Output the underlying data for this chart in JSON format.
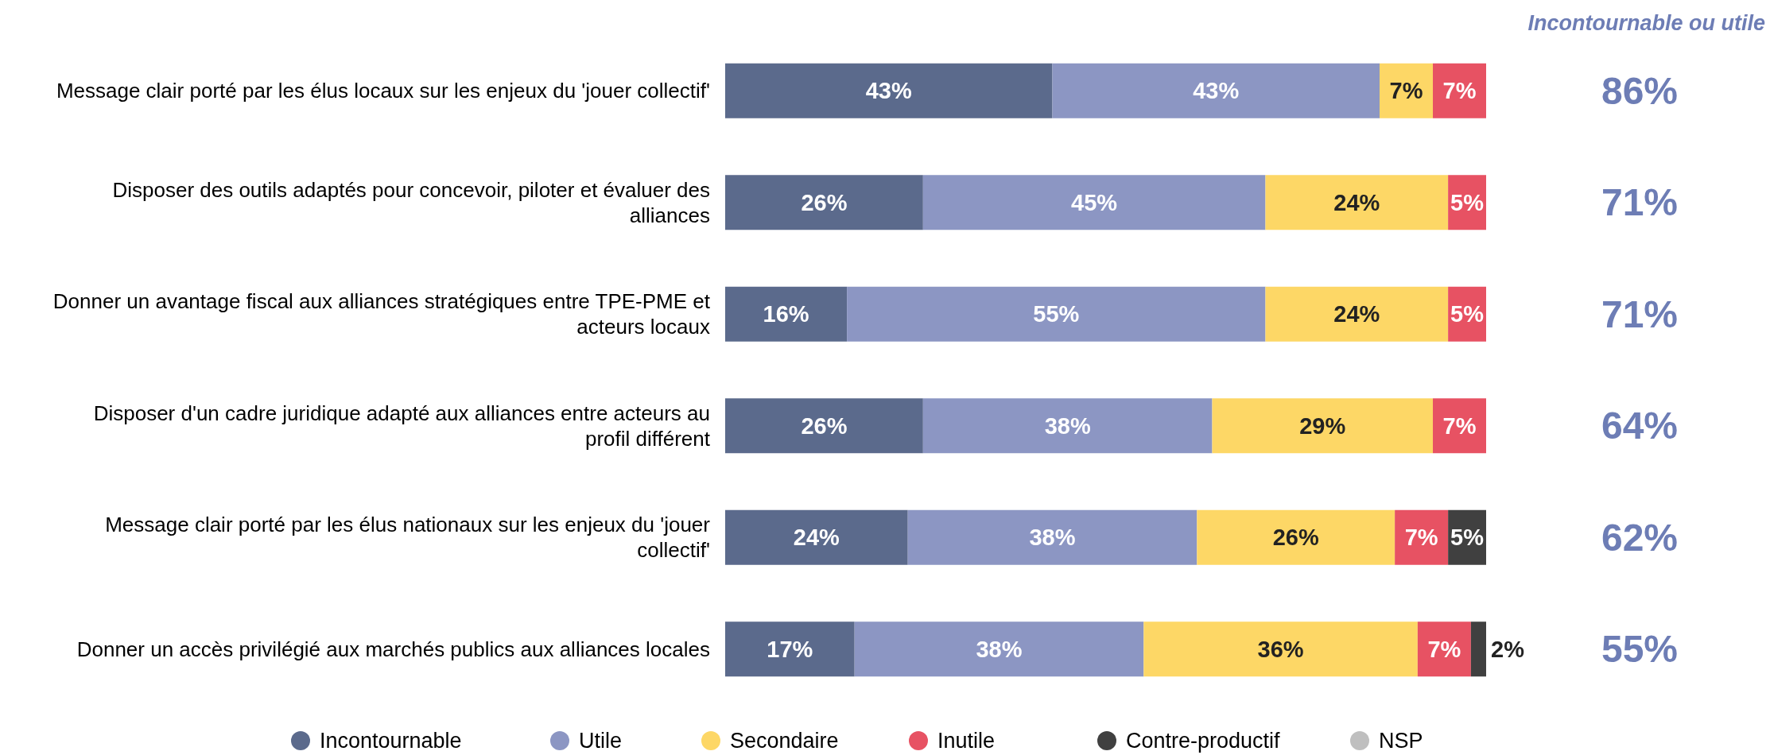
{
  "chart_data": [
    {
      "type": "bar",
      "orientation": "horizontal",
      "stacked": true,
      "legend": "bottom",
      "tick_labels": "y",
      "categories": [
        "Message clair porté par les élus locaux sur les enjeux du 'jouer collectif'",
        "Disposer des outils adaptés pour concevoir, piloter et évaluer des alliances",
        "Donner un avantage fiscal aux alliances stratégiques entre TPE-PME et acteurs locaux",
        "Disposer d'un cadre juridique adapté aux alliances entre acteurs au profil différent",
        "Message clair porté par les élus nationaux sur les enjeux du 'jouer collectif'",
        "Donner un accès privilégié aux marchés publics aux alliances locales"
      ],
      "series": [
        {
          "name": "Incontournable",
          "color": "#5b6a8c",
          "values": [
            43,
            26,
            16,
            26,
            24,
            17
          ],
          "value_labels": [
            "43%",
            "26%",
            "16%",
            "26%",
            "24%",
            "17%"
          ]
        },
        {
          "name": "Utile",
          "color": "#8c96c3",
          "values": [
            43,
            45,
            55,
            38,
            38,
            38
          ],
          "value_labels": [
            "43%",
            "45%",
            "55%",
            "38%",
            "38%",
            "38%"
          ]
        },
        {
          "name": "Secondaire",
          "color": "#fdd766",
          "values": [
            7,
            24,
            24,
            29,
            26,
            36
          ],
          "value_labels": [
            "7%",
            "24%",
            "24%",
            "29%",
            "26%",
            "36%"
          ]
        },
        {
          "name": "Inutile",
          "color": "#e75263",
          "values": [
            7,
            5,
            5,
            7,
            7,
            7
          ],
          "value_labels": [
            "7%",
            "5%",
            "5%",
            "7%",
            "7%",
            "7%"
          ]
        },
        {
          "name": "Contre-productif",
          "color": "#404040",
          "values": [
            null,
            null,
            null,
            null,
            5,
            2
          ],
          "value_labels": [
            null,
            null,
            null,
            null,
            "5%",
            "2%"
          ]
        },
        {
          "name": "NSP",
          "color": "#bfbfbf",
          "values": [
            null,
            null,
            null,
            null,
            null,
            null
          ],
          "value_labels": [
            null,
            null,
            null,
            null,
            null,
            null
          ]
        }
      ]
    },
    {
      "type": "other",
      "title": "Incontournable ou utile",
      "annotations": [
        "86%",
        "71%",
        "71%",
        "64%",
        "62%",
        "55%"
      ]
    }
  ]
}
